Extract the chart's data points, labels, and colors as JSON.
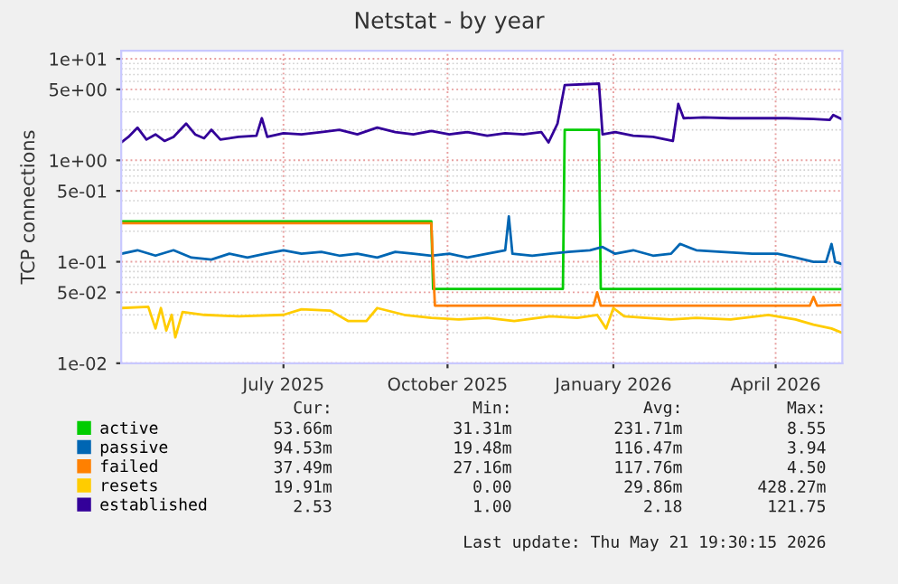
{
  "chart_data": {
    "type": "line",
    "title": "Netstat - by year",
    "ylabel": "TCP connections",
    "log": "y",
    "grid": true,
    "legend": "bottom left",
    "marker": "none",
    "line_style": "solid",
    "xlim": [
      "2025-04-16",
      "2026-05-21"
    ],
    "ylim": [
      0.01,
      12
    ],
    "xticks": [
      {
        "value": "2025-07-15",
        "label": "July 2025"
      },
      {
        "value": "2025-10-14",
        "label": "October 2025"
      },
      {
        "value": "2026-01-14",
        "label": "January 2026"
      },
      {
        "value": "2026-04-14",
        "label": "April 2026"
      }
    ],
    "yticks": [
      {
        "value": 0.01,
        "label": "1e-02"
      },
      {
        "value": 0.05,
        "label": "5e-02"
      },
      {
        "value": 0.1,
        "label": "1e-01"
      },
      {
        "value": 0.5,
        "label": "5e-01"
      },
      {
        "value": 1,
        "label": "1e+00"
      },
      {
        "value": 5,
        "label": "5e+00"
      },
      {
        "value": 10,
        "label": "1e+01"
      }
    ],
    "series": [
      {
        "name": "active",
        "color": "#00cc00",
        "x": [
          "2025-04-16",
          "2025-10-05",
          "2025-10-06",
          "2025-12-17",
          "2025-12-18",
          "2026-01-06",
          "2026-01-07",
          "2026-05-21"
        ],
        "values": [
          0.25,
          0.25,
          0.054,
          0.054,
          2.0,
          2.0,
          0.054,
          0.0537
        ]
      },
      {
        "name": "passive",
        "color": "#0066b3",
        "x": [
          "2025-04-16",
          "2025-04-25",
          "2025-05-05",
          "2025-05-15",
          "2025-05-25",
          "2025-06-05",
          "2025-06-15",
          "2025-06-25",
          "2025-07-05",
          "2025-07-15",
          "2025-07-25",
          "2025-08-05",
          "2025-08-15",
          "2025-08-25",
          "2025-09-05",
          "2025-09-15",
          "2025-09-25",
          "2025-10-05",
          "2025-10-15",
          "2025-10-25",
          "2025-11-05",
          "2025-11-15",
          "2025-11-17",
          "2025-11-19",
          "2025-11-30",
          "2025-12-10",
          "2025-12-20",
          "2026-01-01",
          "2026-01-08",
          "2026-01-15",
          "2026-01-25",
          "2026-02-05",
          "2026-02-15",
          "2026-02-20",
          "2026-03-01",
          "2026-03-15",
          "2026-04-01",
          "2026-04-15",
          "2026-04-25",
          "2026-05-05",
          "2026-05-12",
          "2026-05-15",
          "2026-05-17",
          "2026-05-21"
        ],
        "values": [
          0.12,
          0.13,
          0.115,
          0.13,
          0.11,
          0.105,
          0.12,
          0.11,
          0.12,
          0.13,
          0.12,
          0.125,
          0.115,
          0.12,
          0.11,
          0.125,
          0.12,
          0.115,
          0.12,
          0.11,
          0.12,
          0.13,
          0.28,
          0.12,
          0.115,
          0.12,
          0.125,
          0.13,
          0.14,
          0.12,
          0.13,
          0.115,
          0.12,
          0.15,
          0.13,
          0.125,
          0.12,
          0.12,
          0.11,
          0.1,
          0.1,
          0.15,
          0.1,
          0.0945
        ]
      },
      {
        "name": "failed",
        "color": "#ff8000",
        "x": [
          "2025-04-16",
          "2025-10-05",
          "2025-10-07",
          "2026-01-03",
          "2026-01-05",
          "2026-01-07",
          "2026-05-03",
          "2026-05-05",
          "2026-05-07",
          "2026-05-21"
        ],
        "values": [
          0.24,
          0.24,
          0.037,
          0.037,
          0.05,
          0.037,
          0.037,
          0.045,
          0.037,
          0.0375
        ]
      },
      {
        "name": "resets",
        "color": "#ffcc00",
        "x": [
          "2025-04-16",
          "2025-05-01",
          "2025-05-05",
          "2025-05-08",
          "2025-05-11",
          "2025-05-14",
          "2025-05-16",
          "2025-05-20",
          "2025-06-01",
          "2025-06-20",
          "2025-07-15",
          "2025-07-25",
          "2025-08-10",
          "2025-08-20",
          "2025-08-30",
          "2025-09-05",
          "2025-09-20",
          "2025-10-05",
          "2025-10-20",
          "2025-11-05",
          "2025-11-20",
          "2025-12-10",
          "2025-12-25",
          "2026-01-05",
          "2026-01-10",
          "2026-01-14",
          "2026-01-20",
          "2026-02-01",
          "2026-02-15",
          "2026-03-01",
          "2026-03-20",
          "2026-04-10",
          "2026-04-25",
          "2026-05-05",
          "2026-05-15",
          "2026-05-21"
        ],
        "values": [
          0.035,
          0.036,
          0.022,
          0.035,
          0.021,
          0.03,
          0.018,
          0.032,
          0.03,
          0.029,
          0.03,
          0.034,
          0.033,
          0.026,
          0.026,
          0.035,
          0.03,
          0.028,
          0.027,
          0.028,
          0.026,
          0.029,
          0.028,
          0.03,
          0.022,
          0.035,
          0.029,
          0.028,
          0.027,
          0.028,
          0.027,
          0.03,
          0.027,
          0.024,
          0.022,
          0.0199
        ]
      },
      {
        "name": "established",
        "color": "#330099",
        "x": [
          "2025-04-16",
          "2025-04-20",
          "2025-04-25",
          "2025-04-30",
          "2025-05-05",
          "2025-05-10",
          "2025-05-15",
          "2025-05-22",
          "2025-05-27",
          "2025-06-01",
          "2025-06-05",
          "2025-06-10",
          "2025-06-20",
          "2025-06-30",
          "2025-07-03",
          "2025-07-06",
          "2025-07-15",
          "2025-07-25",
          "2025-08-05",
          "2025-08-15",
          "2025-08-25",
          "2025-09-05",
          "2025-09-15",
          "2025-09-25",
          "2025-10-05",
          "2025-10-15",
          "2025-10-25",
          "2025-11-05",
          "2025-11-15",
          "2025-11-25",
          "2025-12-05",
          "2025-12-09",
          "2025-12-14",
          "2025-12-18",
          "2026-01-06",
          "2026-01-08",
          "2026-01-15",
          "2026-01-25",
          "2026-02-05",
          "2026-02-16",
          "2026-02-19",
          "2026-02-22",
          "2026-03-05",
          "2026-03-20",
          "2026-04-05",
          "2026-04-20",
          "2026-05-05",
          "2026-05-14",
          "2026-05-16",
          "2026-05-21"
        ],
        "values": [
          1.5,
          1.7,
          2.1,
          1.6,
          1.8,
          1.55,
          1.7,
          2.3,
          1.8,
          1.65,
          2.0,
          1.6,
          1.7,
          1.75,
          2.6,
          1.7,
          1.85,
          1.8,
          1.9,
          2.0,
          1.8,
          2.1,
          1.9,
          1.8,
          1.95,
          1.8,
          1.9,
          1.75,
          1.85,
          1.8,
          1.9,
          1.5,
          2.3,
          5.5,
          5.7,
          1.8,
          1.9,
          1.75,
          1.7,
          1.55,
          3.6,
          2.6,
          2.65,
          2.6,
          2.6,
          2.6,
          2.55,
          2.5,
          2.8,
          2.53
        ]
      }
    ],
    "annotations": [
      "Cur:",
      "Min:",
      "Avg:",
      "Max:",
      "53.66m",
      "31.31m",
      "231.71m",
      "8.55",
      "94.53m",
      "19.48m",
      "116.47m",
      "3.94",
      "37.49m",
      "27.16m",
      "117.76m",
      "4.50",
      "19.91m",
      "0.00",
      "29.86m",
      "428.27m",
      "2.53",
      "1.00",
      "2.18",
      "121.75",
      "Last update: Thu May 21 19:30:15 2026"
    ]
  }
}
